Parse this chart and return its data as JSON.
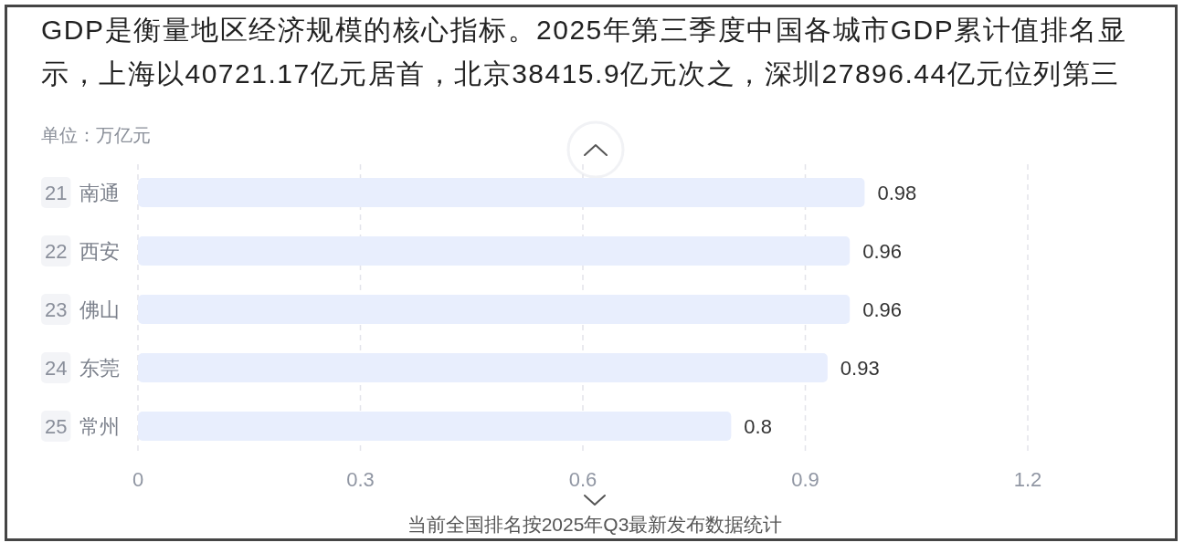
{
  "chart_data": {
    "type": "bar",
    "orientation": "horizontal",
    "title": "GDP是衡量地区经济规模的核心指标。2025年第三季度中国各城市GDP累计值排名显示，上海以40721.17亿元居首，北京38415.9亿元次之，深圳27896.44亿元位列第三",
    "subtitle": "单位：万亿元",
    "categories": [
      "21 南通",
      "22 西安",
      "23 佛山",
      "24 东莞",
      "25 常州"
    ],
    "values": [
      0.98,
      0.96,
      0.96,
      0.93,
      0.8
    ],
    "color": "#e8eefd",
    "xlim": [
      0,
      1.2
    ],
    "xticks": [
      0,
      0.3,
      0.6,
      0.9,
      1.2
    ],
    "grid": "x",
    "data_labels": true,
    "annotations": [
      "当前全国排名按2025年Q3最新发布数据统计"
    ]
  }
}
